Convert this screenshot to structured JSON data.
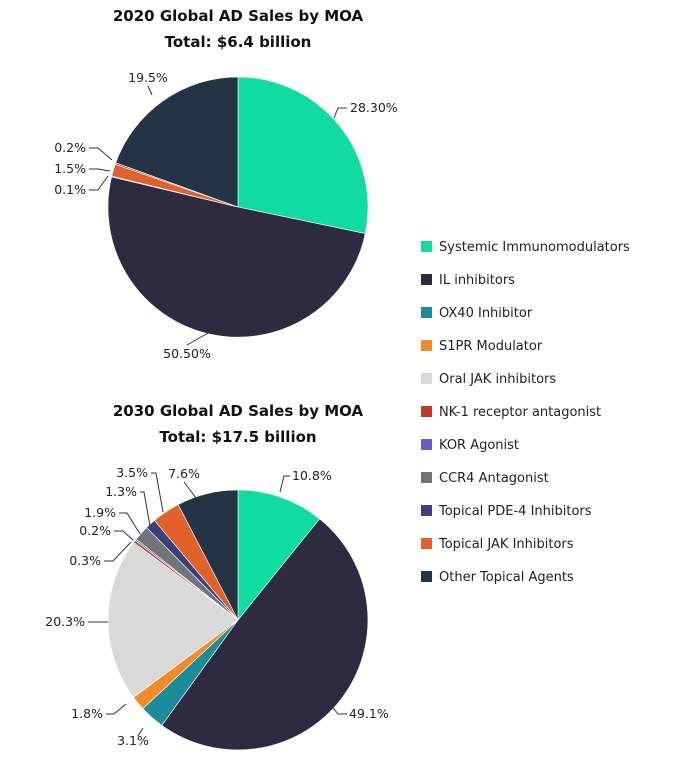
{
  "legend": {
    "entries": [
      {
        "name": "Systemic Immunomodulators",
        "color": "#11DCA0"
      },
      {
        "name": "IL inhibitors",
        "color": "#2E2A3F"
      },
      {
        "name": "OX40 Inhibitor",
        "color": "#1A8C9A"
      },
      {
        "name": "S1PR Modulator",
        "color": "#F28C28"
      },
      {
        "name": "Oral JAK inhibitors",
        "color": "#D9D9D9"
      },
      {
        "name": "NK-1 receptor antagonist",
        "color": "#C0392B"
      },
      {
        "name": "KOR Agonist",
        "color": "#6A5ACD"
      },
      {
        "name": "CCR4 Antagonist",
        "color": "#6E7478"
      },
      {
        "name": "Topical PDE-4 Inhibitors",
        "color": "#3B3F7A"
      },
      {
        "name": "Topical JAK Inhibitors",
        "color": "#E0622A"
      },
      {
        "name": "Other Topical Agents",
        "color": "#243447"
      }
    ]
  },
  "chart_data": [
    {
      "type": "pie",
      "title": "2020 Global AD Sales by MOA",
      "subtitle": "Total: $6.4 billion",
      "slices": [
        {
          "name": "Systemic Immunomodulators",
          "value": 28.3,
          "label": "28.30%"
        },
        {
          "name": "IL inhibitors",
          "value": 50.5,
          "label": "50.50%"
        },
        {
          "name": "Topical PDE-4 Inhibitors",
          "value": 0.1,
          "label": "0.1%"
        },
        {
          "name": "Topical JAK Inhibitors",
          "value": 1.5,
          "label": "1.5%"
        },
        {
          "name": "NK-1 receptor antagonist",
          "value": 0.2,
          "label": "0.2%"
        },
        {
          "name": "Other Topical Agents",
          "value": 19.5,
          "label": "19.5%"
        }
      ]
    },
    {
      "type": "pie",
      "title": "2030 Global AD Sales by MOA",
      "subtitle": "Total: $17.5 billion",
      "slices": [
        {
          "name": "Systemic Immunomodulators",
          "value": 10.8,
          "label": "10.8%"
        },
        {
          "name": "IL inhibitors",
          "value": 49.1,
          "label": "49.1%"
        },
        {
          "name": "OX40 Inhibitor",
          "value": 3.1,
          "label": "3.1%"
        },
        {
          "name": "S1PR Modulator",
          "value": 1.8,
          "label": "1.8%"
        },
        {
          "name": "Oral JAK inhibitors",
          "value": 20.3,
          "label": "20.3%"
        },
        {
          "name": "NK-1 receptor antagonist",
          "value": 0.3,
          "label": "0.3%"
        },
        {
          "name": "KOR Agonist",
          "value": 0.2,
          "label": "0.2%"
        },
        {
          "name": "CCR4 Antagonist",
          "value": 1.9,
          "label": "1.9%"
        },
        {
          "name": "Topical PDE-4 Inhibitors",
          "value": 1.3,
          "label": "1.3%"
        },
        {
          "name": "Topical JAK Inhibitors",
          "value": 3.5,
          "label": "3.5%"
        },
        {
          "name": "Other Topical Agents",
          "value": 7.6,
          "label": "7.6%"
        }
      ]
    }
  ]
}
